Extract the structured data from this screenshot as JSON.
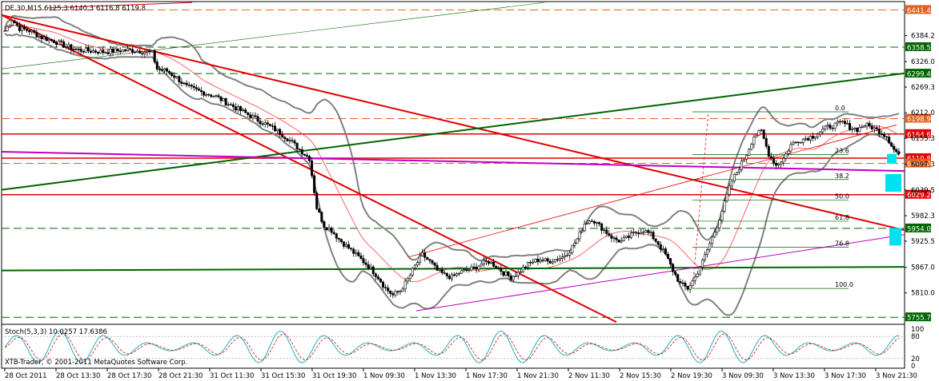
{
  "chart_data": {
    "type": "candlestick",
    "symbol_header": "DE.30,M15  6125.3 6140.3 6116.8 6119.8",
    "symbol": "DE.30",
    "timeframe": "M15",
    "last_bar": {
      "open": 6125.3,
      "high": 6140.3,
      "low": 6116.8,
      "close": 6119.8
    },
    "ylim": [
      5740,
      6460
    ],
    "y_ticks": [
      6384.2,
      6326.0,
      6269.3,
      6212.0,
      6155.3,
      6097.3,
      6039.5,
      5982.3,
      5925.5,
      5867.0,
      5810.0
    ],
    "x_ticks": [
      "28 Oct 2011",
      "28 Oct 13:30",
      "28 Oct 17:30",
      "28 Oct 21:30",
      "31 Oct 11:30",
      "31 Oct 15:30",
      "31 Oct 19:30",
      "1 Nov 09:30",
      "1 Nov 13:30",
      "1 Nov 17:30",
      "1 Nov 21:30",
      "2 Nov 11:30",
      "2 Nov 15:30",
      "2 Nov 19:30",
      "3 Nov 09:30",
      "3 Nov 13:30",
      "3 Nov 17:30",
      "3 Nov 21:30"
    ],
    "price_labels": [
      {
        "value": 6441.4,
        "text": "6441.4",
        "color": "#e06020"
      },
      {
        "value": 6358.5,
        "text": "6358.5",
        "color": "#006400"
      },
      {
        "value": 6299.4,
        "text": "6299.4",
        "color": "#006400"
      },
      {
        "value": 6198.9,
        "text": "6198.9",
        "color": "#e06020"
      },
      {
        "value": 6164.6,
        "text": "6164.6",
        "color": "#e00000"
      },
      {
        "value": 6110.8,
        "text": "6110.8",
        "color": "#e00000"
      },
      {
        "value": 6099.0,
        "text": "6099.0",
        "color": "#e06020"
      },
      {
        "value": 6029.2,
        "text": "6029.2",
        "color": "#e00000"
      },
      {
        "value": 5954.0,
        "text": "5954.0",
        "color": "#006400"
      },
      {
        "value": 5755.7,
        "text": "5755.7",
        "color": "#006400"
      }
    ],
    "fibonacci_levels": [
      {
        "ratio": "0.0",
        "value": 6214
      },
      {
        "ratio": "23.6",
        "value": 6119
      },
      {
        "ratio": "38.2",
        "value": 6063
      },
      {
        "ratio": "50.0",
        "value": 6017
      },
      {
        "ratio": "61.8",
        "value": 5970
      },
      {
        "ratio": "76.8",
        "value": 5912
      },
      {
        "ratio": "100.0",
        "value": 5820
      }
    ],
    "indicator": {
      "name": "Stoch(5,3,3)",
      "header": "Stoch(5,3,3) 10.0257 17.6386",
      "main": 10.0257,
      "signal": 17.6386,
      "ylim": [
        0,
        100
      ]
    },
    "copyright": "XTB-Trader, © 2001-2011 MetaQuotes Software Corp.",
    "price_path": [
      [
        0,
        6395
      ],
      [
        3,
        6420
      ],
      [
        6,
        6400
      ],
      [
        10,
        6395
      ],
      [
        15,
        6380
      ],
      [
        20,
        6372
      ],
      [
        25,
        6360
      ],
      [
        30,
        6352
      ],
      [
        35,
        6350
      ],
      [
        40,
        6348
      ],
      [
        45,
        6350
      ],
      [
        50,
        6352
      ],
      [
        55,
        6350
      ],
      [
        60,
        6345
      ],
      [
        62,
        6310
      ],
      [
        66,
        6305
      ],
      [
        70,
        6290
      ],
      [
        74,
        6270
      ],
      [
        78,
        6262
      ],
      [
        82,
        6255
      ],
      [
        86,
        6248
      ],
      [
        90,
        6235
      ],
      [
        95,
        6220
      ],
      [
        100,
        6205
      ],
      [
        105,
        6190
      ],
      [
        110,
        6175
      ],
      [
        115,
        6155
      ],
      [
        120,
        6130
      ],
      [
        124,
        6110
      ],
      [
        127,
        6000
      ],
      [
        130,
        5960
      ],
      [
        133,
        5950
      ],
      [
        136,
        5930
      ],
      [
        140,
        5910
      ],
      [
        144,
        5890
      ],
      [
        148,
        5870
      ],
      [
        152,
        5845
      ],
      [
        155,
        5820
      ],
      [
        158,
        5805
      ],
      [
        161,
        5815
      ],
      [
        164,
        5840
      ],
      [
        167,
        5870
      ],
      [
        170,
        5895
      ],
      [
        173,
        5880
      ],
      [
        176,
        5860
      ],
      [
        179,
        5850
      ],
      [
        182,
        5845
      ],
      [
        185,
        5855
      ],
      [
        188,
        5860
      ],
      [
        191,
        5865
      ],
      [
        194,
        5875
      ],
      [
        197,
        5880
      ],
      [
        200,
        5870
      ],
      [
        203,
        5855
      ],
      [
        206,
        5845
      ],
      [
        209,
        5855
      ],
      [
        212,
        5870
      ],
      [
        215,
        5880
      ],
      [
        218,
        5885
      ],
      [
        221,
        5880
      ],
      [
        224,
        5885
      ],
      [
        227,
        5890
      ],
      [
        230,
        5905
      ],
      [
        233,
        5930
      ],
      [
        236,
        5965
      ],
      [
        239,
        5975
      ],
      [
        242,
        5960
      ],
      [
        245,
        5945
      ],
      [
        248,
        5930
      ],
      [
        251,
        5925
      ],
      [
        254,
        5935
      ],
      [
        257,
        5945
      ],
      [
        260,
        5950
      ],
      [
        263,
        5940
      ],
      [
        266,
        5920
      ],
      [
        269,
        5895
      ],
      [
        272,
        5860
      ],
      [
        275,
        5830
      ],
      [
        278,
        5820
      ],
      [
        281,
        5845
      ],
      [
        284,
        5880
      ],
      [
        287,
        5920
      ],
      [
        290,
        5960
      ],
      [
        293,
        6010
      ],
      [
        296,
        6060
      ],
      [
        299,
        6090
      ],
      [
        302,
        6120
      ],
      [
        305,
        6160
      ],
      [
        308,
        6170
      ],
      [
        311,
        6120
      ],
      [
        314,
        6095
      ],
      [
        317,
        6110
      ],
      [
        320,
        6140
      ],
      [
        323,
        6150
      ],
      [
        326,
        6155
      ],
      [
        329,
        6160
      ],
      [
        332,
        6170
      ],
      [
        335,
        6180
      ],
      [
        338,
        6185
      ],
      [
        341,
        6190
      ],
      [
        344,
        6180
      ],
      [
        347,
        6175
      ],
      [
        350,
        6185
      ],
      [
        353,
        6180
      ],
      [
        356,
        6170
      ],
      [
        359,
        6160
      ],
      [
        362,
        6130
      ],
      [
        364,
        6120
      ]
    ]
  },
  "labels": {
    "header": "DE.30,M15  6125.3 6140.3 6116.8 6119.8",
    "stoch_header": "Stoch(5,3,3) 10.0257 17.6386",
    "copyright": "XTB-Trader, © 2001-2011 MetaQuotes Software Corp.",
    "stoch_ticks": [
      "100",
      "80",
      "20",
      "0"
    ]
  },
  "colors": {
    "up_candle": "#ffffff",
    "down_candle": "#000000",
    "trendline_red": "#e00000",
    "trendline_green": "#006400",
    "magenta": "#c000c0",
    "bollinger": "#808080",
    "stoch_main": "#20b0c0",
    "stoch_signal": "#e00000",
    "highlight": "#00e0f0"
  }
}
